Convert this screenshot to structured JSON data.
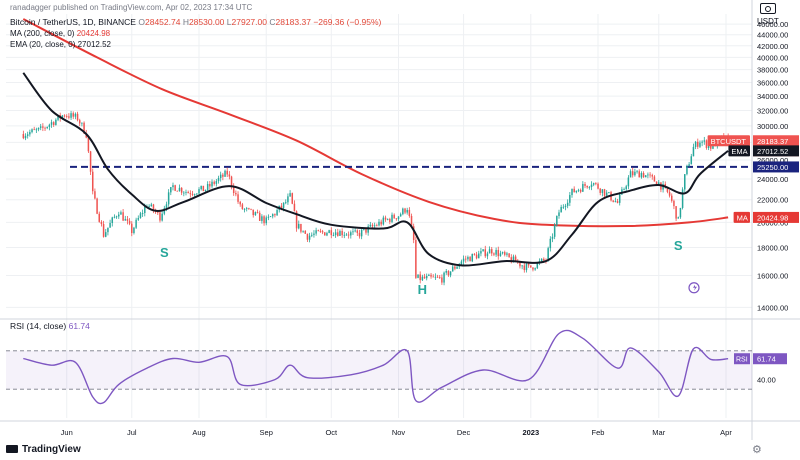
{
  "header": {
    "publisher": "ranadagger published on TradingView.com, Apr 02, 2023 17:34 UTC",
    "symbol": "Bitcoin / TetherUS, 1D, BINANCE",
    "ohlc": {
      "o_label": "O",
      "o": "28452.74",
      "h_label": "H",
      "h": "28530.00",
      "l_label": "L",
      "l": "27927.00",
      "c_label": "C",
      "c": "28183.37",
      "change": "−269.36 (−0.95%)"
    },
    "ma_label": "MA (200, close, 0)",
    "ma_value": "20424.98",
    "ema_label": "EMA (20, close, 0)",
    "ema_value": "27012.52"
  },
  "rsi_header": {
    "label": "RSI (14, close)",
    "value": "61.74"
  },
  "footer": {
    "logo": "TradingView"
  },
  "colors": {
    "up": "#26a69a",
    "down": "#ef5350",
    "ma": "#e53935",
    "ema": "#131722",
    "rsi": "#7e57c2",
    "level": "#1a237e",
    "grid": "#eef0f3"
  },
  "icons": {
    "camera": "camera-icon",
    "settings": "gear-icon"
  },
  "chart_data": [
    {
      "type": "candlestick",
      "title": "Bitcoin / TetherUS, 1D, BINANCE",
      "currency": "USDT",
      "y_scale": "log",
      "ylim": [
        13500,
        48000
      ],
      "xlim": [
        "2023-05-18",
        "2024-04-13"
      ],
      "y_ticks": [
        "46000.00",
        "44000.00",
        "42000.00",
        "40000.00",
        "38000.00",
        "36000.00",
        "34000.00",
        "32000.00",
        "30000.00",
        "28000.00",
        "26000.00",
        "24000.00",
        "22000.00",
        "20000.00",
        "18000.00",
        "16000.00",
        "14000.00"
      ],
      "x_ticks": [
        {
          "label": "Jun",
          "date": "2022-06-01"
        },
        {
          "label": "Jul",
          "date": "2022-07-01"
        },
        {
          "label": "Aug",
          "date": "2022-08-01"
        },
        {
          "label": "Sep",
          "date": "2022-09-01"
        },
        {
          "label": "Oct",
          "date": "2022-10-01"
        },
        {
          "label": "Nov",
          "date": "2022-11-01"
        },
        {
          "label": "Dec",
          "date": "2022-12-01"
        },
        {
          "label": "2023",
          "date": "2023-01-01"
        },
        {
          "label": "Feb",
          "date": "2023-02-01"
        },
        {
          "label": "Mar",
          "date": "2023-03-01"
        },
        {
          "label": "Apr",
          "date": "2023-04-01"
        }
      ],
      "price_path": [
        [
          "2022-05-12",
          29000
        ],
        [
          "2022-05-20",
          29500
        ],
        [
          "2022-05-31",
          31500
        ],
        [
          "2022-06-06",
          31000
        ],
        [
          "2022-06-10",
          29000
        ],
        [
          "2022-06-13",
          22500
        ],
        [
          "2022-06-18",
          19000
        ],
        [
          "2022-06-25",
          21000
        ],
        [
          "2022-07-01",
          19300
        ],
        [
          "2022-07-08",
          21600
        ],
        [
          "2022-07-14",
          20500
        ],
        [
          "2022-07-20",
          23300
        ],
        [
          "2022-07-27",
          22700
        ],
        [
          "2022-08-04",
          23000
        ],
        [
          "2022-08-14",
          24600
        ],
        [
          "2022-08-20",
          21300
        ],
        [
          "2022-09-01",
          20100
        ],
        [
          "2022-09-09",
          21500
        ],
        [
          "2022-09-12",
          22300
        ],
        [
          "2022-09-15",
          19800
        ],
        [
          "2022-09-20",
          18900
        ],
        [
          "2022-10-01",
          19300
        ],
        [
          "2022-10-13",
          19000
        ],
        [
          "2022-10-25",
          20100
        ],
        [
          "2022-11-01",
          20600
        ],
        [
          "2022-11-05",
          21300
        ],
        [
          "2022-11-08",
          18500
        ],
        [
          "2022-11-09",
          15800
        ],
        [
          "2022-11-21",
          15800
        ],
        [
          "2022-12-01",
          17100
        ],
        [
          "2022-12-14",
          17800
        ],
        [
          "2022-12-31",
          16500
        ],
        [
          "2023-01-08",
          17100
        ],
        [
          "2023-01-14",
          20900
        ],
        [
          "2023-01-20",
          22700
        ],
        [
          "2023-01-29",
          23700
        ],
        [
          "2023-02-10",
          21700
        ],
        [
          "2023-02-16",
          24500
        ],
        [
          "2023-02-21",
          24600
        ],
        [
          "2023-03-01",
          23600
        ],
        [
          "2023-03-06",
          22400
        ],
        [
          "2023-03-10",
          20100
        ],
        [
          "2023-03-13",
          24200
        ],
        [
          "2023-03-17",
          27400
        ],
        [
          "2023-03-20",
          28200
        ],
        [
          "2023-03-25",
          27500
        ],
        [
          "2023-03-30",
          28400
        ],
        [
          "2023-04-02",
          28183
        ]
      ],
      "ema20_path": [
        [
          "2022-05-12",
          37500
        ],
        [
          "2022-05-25",
          32000
        ],
        [
          "2022-06-10",
          29000
        ],
        [
          "2022-06-20",
          25000
        ],
        [
          "2022-07-01",
          22500
        ],
        [
          "2022-07-12",
          21000
        ],
        [
          "2022-07-25",
          21800
        ],
        [
          "2022-08-15",
          23300
        ],
        [
          "2022-09-01",
          21700
        ],
        [
          "2022-09-15",
          20700
        ],
        [
          "2022-10-01",
          19800
        ],
        [
          "2022-10-25",
          19500
        ],
        [
          "2022-11-05",
          20000
        ],
        [
          "2022-11-15",
          17500
        ],
        [
          "2022-11-30",
          16700
        ],
        [
          "2022-12-20",
          17000
        ],
        [
          "2023-01-08",
          17000
        ],
        [
          "2023-01-20",
          19000
        ],
        [
          "2023-02-01",
          21800
        ],
        [
          "2023-02-15",
          22800
        ],
        [
          "2023-03-01",
          23400
        ],
        [
          "2023-03-13",
          22600
        ],
        [
          "2023-03-20",
          24500
        ],
        [
          "2023-04-02",
          27012.52
        ]
      ],
      "ma200_path": [
        [
          "2022-05-12",
          47000
        ],
        [
          "2022-06-15",
          40000
        ],
        [
          "2022-07-15",
          35000
        ],
        [
          "2022-08-15",
          31500
        ],
        [
          "2022-09-15",
          28200
        ],
        [
          "2022-10-15",
          24500
        ],
        [
          "2022-11-15",
          21800
        ],
        [
          "2022-12-15",
          20300
        ],
        [
          "2023-01-08",
          19800
        ],
        [
          "2023-02-15",
          19700
        ],
        [
          "2023-03-15",
          20000
        ],
        [
          "2023-04-02",
          20424.98
        ]
      ],
      "horizontal_levels": [
        {
          "value": 25250,
          "label": "25250.00",
          "style": "dashed"
        }
      ],
      "price_labels": [
        {
          "name": "BTCUSDT",
          "value": "28183.37",
          "countdown": "06:25:13"
        },
        {
          "name": "EMA",
          "value": "27012.52"
        },
        {
          "name": "",
          "value": "25250.00"
        },
        {
          "name": "MA",
          "value": "20424.98"
        }
      ],
      "pattern_annotations": [
        {
          "text": "S",
          "date": "2022-07-16",
          "price": 17300
        },
        {
          "text": "H",
          "date": "2022-11-12",
          "price": 14800
        },
        {
          "text": "S",
          "date": "2023-03-10",
          "price": 17800
        }
      ]
    },
    {
      "type": "line",
      "title": "RSI (14, close)",
      "ylim": [
        0,
        100
      ],
      "y_ticks": [
        "40.00"
      ],
      "levels": [
        70,
        30
      ],
      "last_value": "61.74",
      "series": [
        {
          "values": [
            [
              "2022-05-12",
              62
            ],
            [
              "2022-05-25",
              55
            ],
            [
              "2022-06-05",
              58
            ],
            [
              "2022-06-13",
              22
            ],
            [
              "2022-06-18",
              16
            ],
            [
              "2022-06-25",
              35
            ],
            [
              "2022-07-08",
              52
            ],
            [
              "2022-07-20",
              62
            ],
            [
              "2022-08-01",
              58
            ],
            [
              "2022-08-14",
              64
            ],
            [
              "2022-08-20",
              35
            ],
            [
              "2022-09-05",
              40
            ],
            [
              "2022-09-12",
              55
            ],
            [
              "2022-09-20",
              42
            ],
            [
              "2022-10-10",
              45
            ],
            [
              "2022-10-25",
              55
            ],
            [
              "2022-11-05",
              70
            ],
            [
              "2022-11-09",
              18
            ],
            [
              "2022-11-21",
              32
            ],
            [
              "2022-12-10",
              50
            ],
            [
              "2022-12-31",
              40
            ],
            [
              "2023-01-14",
              88
            ],
            [
              "2023-01-25",
              83
            ],
            [
              "2023-02-10",
              52
            ],
            [
              "2023-02-16",
              73
            ],
            [
              "2023-03-01",
              48
            ],
            [
              "2023-03-10",
              23
            ],
            [
              "2023-03-17",
              72
            ],
            [
              "2023-03-25",
              61
            ],
            [
              "2023-04-02",
              61.74
            ]
          ]
        }
      ]
    }
  ]
}
